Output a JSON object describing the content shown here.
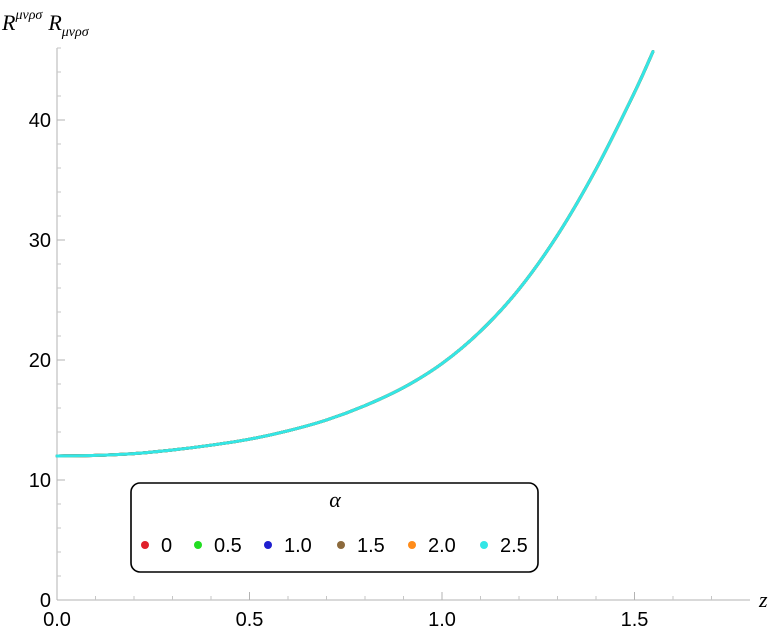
{
  "chart_data": {
    "type": "line",
    "title": "",
    "ylabel": "R^{μνρσ} R_{μνρσ}",
    "ylabel_main": "R",
    "ylabel_sup": "μνρσ",
    "ylabel_main2": "R",
    "ylabel_sub": "μνρσ",
    "xlabel": "z",
    "xlim": [
      0,
      1.8
    ],
    "ylim": [
      0,
      46
    ],
    "x_ticks": [
      0.0,
      0.5,
      1.0,
      1.5
    ],
    "x_tick_labels": [
      "0.0",
      "0.5",
      "1.0",
      "1.5"
    ],
    "y_ticks": [
      0,
      10,
      20,
      30,
      40
    ],
    "y_tick_labels": [
      "0",
      "10",
      "20",
      "30",
      "40"
    ],
    "grid": false,
    "legend": {
      "title": "α",
      "placement": "bottom-left",
      "entries": [
        {
          "label": "0",
          "color": "#e0202a"
        },
        {
          "label": "0.5",
          "color": "#22dd22"
        },
        {
          "label": "1.0",
          "color": "#1f1fcf"
        },
        {
          "label": "1.5",
          "color": "#8c6a3c"
        },
        {
          "label": "2.0",
          "color": "#ff8c1a"
        },
        {
          "label": "2.5",
          "color": "#33e6e6"
        }
      ]
    },
    "series": [
      {
        "name": "0",
        "color": "#e0202a",
        "x": [
          0,
          0.1,
          0.2,
          0.3,
          0.4,
          0.5,
          0.6,
          0.7,
          0.8,
          0.9,
          1.0,
          1.1,
          1.2,
          1.3,
          1.4,
          1.5,
          1.548
        ],
        "y": [
          12.0,
          12.05,
          12.2,
          12.5,
          12.9,
          13.4,
          14.1,
          15.0,
          16.2,
          17.7,
          19.7,
          22.4,
          25.9,
          30.4,
          35.9,
          42.3,
          45.7
        ]
      },
      {
        "name": "0.5",
        "color": "#22dd22",
        "x": [
          0,
          0.1,
          0.2,
          0.3,
          0.4,
          0.5,
          0.6,
          0.7,
          0.8,
          0.9,
          1.0,
          1.1,
          1.2,
          1.3,
          1.4,
          1.5,
          1.548
        ],
        "y": [
          12.0,
          12.05,
          12.2,
          12.5,
          12.9,
          13.4,
          14.1,
          15.0,
          16.2,
          17.7,
          19.7,
          22.4,
          25.9,
          30.4,
          35.9,
          42.3,
          45.7
        ]
      },
      {
        "name": "1.0",
        "color": "#1f1fcf",
        "x": [
          0,
          0.1,
          0.2,
          0.3,
          0.4,
          0.5,
          0.6,
          0.7,
          0.8,
          0.9,
          1.0,
          1.1,
          1.2,
          1.3,
          1.4,
          1.5,
          1.548
        ],
        "y": [
          12.0,
          12.05,
          12.2,
          12.5,
          12.9,
          13.4,
          14.1,
          15.0,
          16.2,
          17.7,
          19.7,
          22.4,
          25.9,
          30.4,
          35.9,
          42.3,
          45.7
        ]
      },
      {
        "name": "1.5",
        "color": "#8c6a3c",
        "x": [
          0,
          0.1,
          0.2,
          0.3,
          0.4,
          0.5,
          0.6,
          0.7,
          0.8,
          0.9,
          1.0,
          1.1,
          1.2,
          1.3,
          1.4,
          1.5,
          1.548
        ],
        "y": [
          12.0,
          12.05,
          12.2,
          12.5,
          12.9,
          13.4,
          14.1,
          15.0,
          16.2,
          17.7,
          19.7,
          22.4,
          25.9,
          30.4,
          35.9,
          42.3,
          45.7
        ]
      },
      {
        "name": "2.0",
        "color": "#ff8c1a",
        "x": [
          0,
          0.1,
          0.2,
          0.3,
          0.4,
          0.5,
          0.6,
          0.7,
          0.8,
          0.9,
          1.0,
          1.1,
          1.2,
          1.3,
          1.4,
          1.5,
          1.548
        ],
        "y": [
          12.0,
          12.05,
          12.2,
          12.5,
          12.9,
          13.4,
          14.1,
          15.0,
          16.2,
          17.7,
          19.7,
          22.4,
          25.9,
          30.4,
          35.9,
          42.3,
          45.7
        ]
      },
      {
        "name": "2.5",
        "color": "#33e6e6",
        "x": [
          0,
          0.1,
          0.2,
          0.3,
          0.4,
          0.5,
          0.6,
          0.7,
          0.8,
          0.9,
          1.0,
          1.1,
          1.2,
          1.3,
          1.4,
          1.5,
          1.548
        ],
        "y": [
          12.0,
          12.05,
          12.2,
          12.5,
          12.9,
          13.4,
          14.1,
          15.0,
          16.2,
          17.7,
          19.7,
          22.4,
          25.9,
          30.4,
          35.9,
          42.3,
          45.7
        ]
      }
    ]
  }
}
